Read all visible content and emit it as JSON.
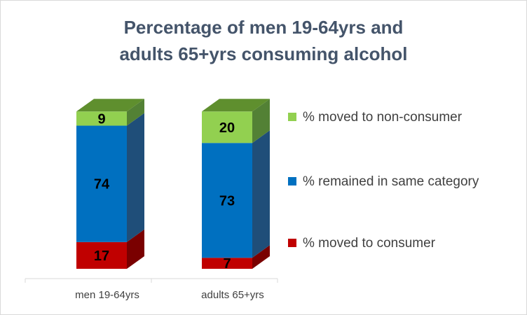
{
  "chart_data": {
    "type": "bar",
    "stacked": true,
    "three_d": true,
    "title": [
      "Percentage of men 19-64yrs and",
      "adults 65+yrs consuming alcohol"
    ],
    "xlabel": "",
    "ylabel": "",
    "ylim": [
      0,
      100
    ],
    "grid": false,
    "legend_position": "right",
    "categories": [
      "men 19-64yrs",
      "adults 65+yrs"
    ],
    "series": [
      {
        "name": "% moved to consumer",
        "values": [
          17,
          7
        ],
        "color": "#c00000",
        "top_color": "#8a0000",
        "side_color": "#7a0000"
      },
      {
        "name": "% remained in same category",
        "values": [
          74,
          73
        ],
        "color": "#0070c0",
        "top_color": "#4f81bd",
        "side_color": "#1f4e79"
      },
      {
        "name": "% moved to non-consumer",
        "values": [
          9,
          20
        ],
        "color": "#92d050",
        "top_color": "#5f8f2e",
        "side_color": "#538135"
      }
    ],
    "legend_order": [
      "% moved to non-consumer",
      "% remained in same category",
      "% moved to consumer"
    ]
  }
}
